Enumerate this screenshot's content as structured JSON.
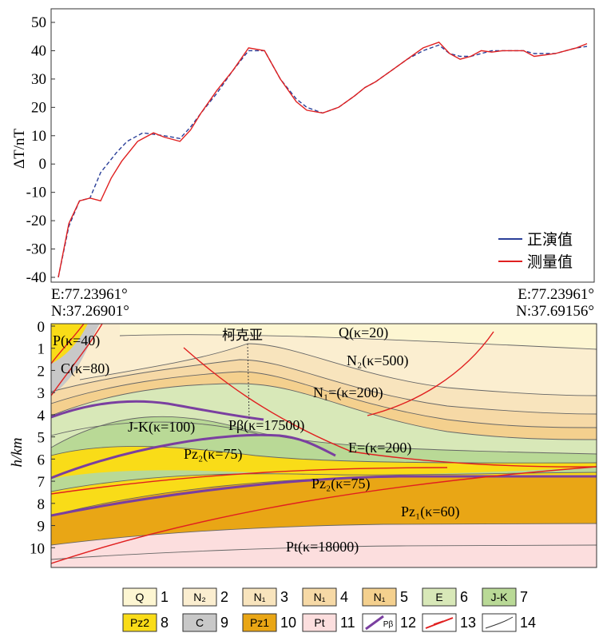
{
  "chart_data": [
    {
      "type": "line",
      "ylabel": "ΔT/nT",
      "ylim": [
        -40,
        50
      ],
      "yticks": [
        "50",
        "40",
        "30",
        "20",
        "10",
        "0",
        "-10",
        "-20",
        "-30",
        "-40"
      ],
      "x_start_label": [
        "E:77.23961°",
        "N:37.26901°"
      ],
      "x_end_label": [
        "E:77.23961°",
        "N:37.69156°"
      ],
      "legend_position": "bottom-right",
      "series": [
        {
          "name": "正演值",
          "color": "#2a3f99",
          "style": "dashed",
          "x": [
            0,
            0.02,
            0.04,
            0.06,
            0.08,
            0.11,
            0.13,
            0.16,
            0.2,
            0.23,
            0.25,
            0.27,
            0.3,
            0.33,
            0.36,
            0.39,
            0.42,
            0.45,
            0.47,
            0.5,
            0.53,
            0.56,
            0.58,
            0.6,
            0.63,
            0.66,
            0.69,
            0.72,
            0.74,
            0.76,
            0.78,
            0.8,
            0.82,
            0.84,
            0.86,
            0.88,
            0.9,
            0.92,
            0.94,
            0.96,
            0.98,
            1.0
          ],
          "values": [
            -40,
            -22,
            -13,
            -12,
            -3,
            4,
            8,
            11,
            10,
            9,
            13,
            18,
            25,
            33,
            40,
            40,
            30,
            23,
            20,
            18,
            20,
            24,
            27,
            29,
            33,
            37,
            40,
            42,
            39,
            38,
            38,
            39,
            40,
            40,
            40,
            40,
            39,
            39,
            39,
            40,
            41,
            41.5
          ]
        },
        {
          "name": "测量值",
          "color": "#e02020",
          "style": "solid",
          "x": [
            0,
            0.02,
            0.04,
            0.06,
            0.08,
            0.1,
            0.12,
            0.15,
            0.18,
            0.2,
            0.23,
            0.25,
            0.27,
            0.3,
            0.33,
            0.36,
            0.39,
            0.42,
            0.45,
            0.47,
            0.5,
            0.53,
            0.56,
            0.58,
            0.6,
            0.63,
            0.66,
            0.69,
            0.72,
            0.74,
            0.76,
            0.78,
            0.8,
            0.82,
            0.84,
            0.86,
            0.88,
            0.9,
            0.92,
            0.94,
            0.96,
            0.98,
            1.0
          ],
          "values": [
            -40,
            -21,
            -13,
            -12,
            -13,
            -5,
            1,
            8,
            11,
            9.5,
            8,
            12,
            18,
            26,
            33,
            41,
            40,
            30,
            22,
            19,
            18,
            20,
            24,
            27,
            29,
            33,
            37,
            41,
            43,
            39,
            37,
            38,
            40,
            39.5,
            40,
            40,
            40,
            38,
            38.5,
            39,
            40,
            41,
            42.5
          ]
        }
      ]
    },
    {
      "type": "cross-section",
      "ylabel": "h/km",
      "ylim": [
        0,
        11
      ],
      "yticks": [
        "0",
        "1",
        "2",
        "3",
        "4",
        "5",
        "6",
        "7",
        "8",
        "9",
        "10"
      ],
      "labels": {
        "kekeya": "柯克亚",
        "p": "P(κ=40)",
        "c": "C(κ=80)",
        "q": "Q(κ=20)",
        "n2": "N₂(κ=500)",
        "n1": "N₁=(κ=200)",
        "jk": "J-K(κ=100)",
        "pbeta": "Pβ(κ=17500)",
        "e": "E=(κ=200)",
        "pz2a": "Pz₂(κ=75)",
        "pz2b": "Pz₂(κ=75)",
        "pz1": "Pz₁(κ=60)",
        "pt": "Pt(κ=18000)"
      },
      "colors": {
        "q": "#fdf6d2",
        "n2": "#fbeed0",
        "n1a": "#f8e4bd",
        "n1b": "#f6d9a6",
        "n1c": "#f4d08e",
        "e": "#d8e8b8",
        "jk": "#b9d996",
        "pz2": "#f9dc18",
        "c": "#c8c8c8",
        "pz1": "#e9a615",
        "pt": "#fcdede",
        "basalt": "#7a3fa0",
        "fault": "#e02020"
      }
    }
  ],
  "legend": [
    {
      "swatch": "Q",
      "num": "1"
    },
    {
      "swatch": "N₂",
      "num": "2"
    },
    {
      "swatch": "N₁",
      "num": "3"
    },
    {
      "swatch": "N₁",
      "num": "4"
    },
    {
      "swatch": "N₁",
      "num": "5"
    },
    {
      "swatch": "E",
      "num": "6"
    },
    {
      "swatch": "J-K",
      "num": "7"
    },
    {
      "swatch": "Pz2",
      "num": "8"
    },
    {
      "swatch": "C",
      "num": "9"
    },
    {
      "swatch": "Pz1",
      "num": "10"
    },
    {
      "swatch": "Pt",
      "num": "11"
    },
    {
      "swatch": "Pβ",
      "num": "12"
    },
    {
      "swatch": "",
      "num": "13"
    },
    {
      "swatch": "",
      "num": "14"
    }
  ]
}
